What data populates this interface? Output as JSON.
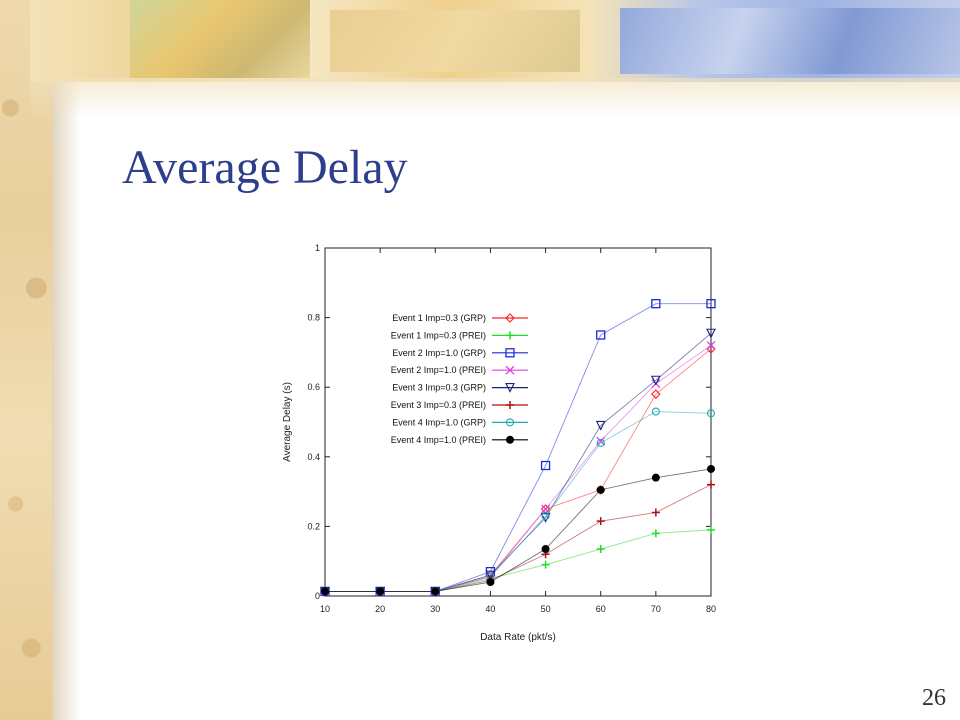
{
  "slide": {
    "title": "Average Delay",
    "page_number": "26"
  },
  "chart_data": {
    "type": "line",
    "title": "",
    "xlabel": "Data Rate (pkt/s)",
    "ylabel": "Average Delay (s)",
    "x": [
      10,
      20,
      30,
      40,
      50,
      60,
      70,
      80
    ],
    "xlim": [
      10,
      80
    ],
    "ylim": [
      0,
      1
    ],
    "xticks": [
      "10",
      "20",
      "30",
      "40",
      "50",
      "60",
      "70",
      "80"
    ],
    "yticks": [
      "0",
      "0.2",
      "0.4",
      "0.6",
      "0.8",
      "1"
    ],
    "grid": false,
    "legend_position": "top-left",
    "series": [
      {
        "name": "Event 1 Imp=0.3  (GRP)",
        "color": "#ff2020",
        "marker": "diamond",
        "values": [
          0.013,
          0.013,
          0.013,
          0.06,
          0.25,
          0.305,
          0.58,
          0.71
        ]
      },
      {
        "name": "Event 1 Imp=0.3 (PREI)",
        "color": "#22dd22",
        "marker": "plus",
        "values": [
          0.013,
          0.013,
          0.013,
          0.05,
          0.09,
          0.135,
          0.18,
          0.19
        ]
      },
      {
        "name": "Event 2 Imp=1.0  (GRP)",
        "color": "#1a2bd8",
        "marker": "square",
        "values": [
          0.013,
          0.013,
          0.013,
          0.07,
          0.375,
          0.75,
          0.84,
          0.84
        ]
      },
      {
        "name": "Event 2 Imp=1.0 (PREI)",
        "color": "#e040e0",
        "marker": "x",
        "values": [
          0.013,
          0.013,
          0.013,
          0.055,
          0.25,
          0.445,
          0.61,
          0.72
        ]
      },
      {
        "name": "Event 3 Imp=0.3  (GRP)",
        "color": "#1a2080",
        "marker": "triangle-down",
        "values": [
          0.013,
          0.013,
          0.013,
          0.06,
          0.225,
          0.49,
          0.62,
          0.755
        ]
      },
      {
        "name": "Event 3 Imp=0.3 (PREI)",
        "color": "#aa1010",
        "marker": "plus",
        "values": [
          0.013,
          0.013,
          0.013,
          0.045,
          0.12,
          0.215,
          0.24,
          0.32
        ]
      },
      {
        "name": "Event 4 Imp=1.0  (GRP)",
        "color": "#20a8b8",
        "marker": "circle-open",
        "values": [
          0.013,
          0.013,
          0.013,
          0.055,
          0.23,
          0.44,
          0.53,
          0.525
        ]
      },
      {
        "name": "Event 4 Imp=1.0 (PREI)",
        "color": "#000000",
        "marker": "circle-filled",
        "values": [
          0.013,
          0.013,
          0.013,
          0.04,
          0.135,
          0.305,
          0.34,
          0.365
        ]
      }
    ]
  }
}
